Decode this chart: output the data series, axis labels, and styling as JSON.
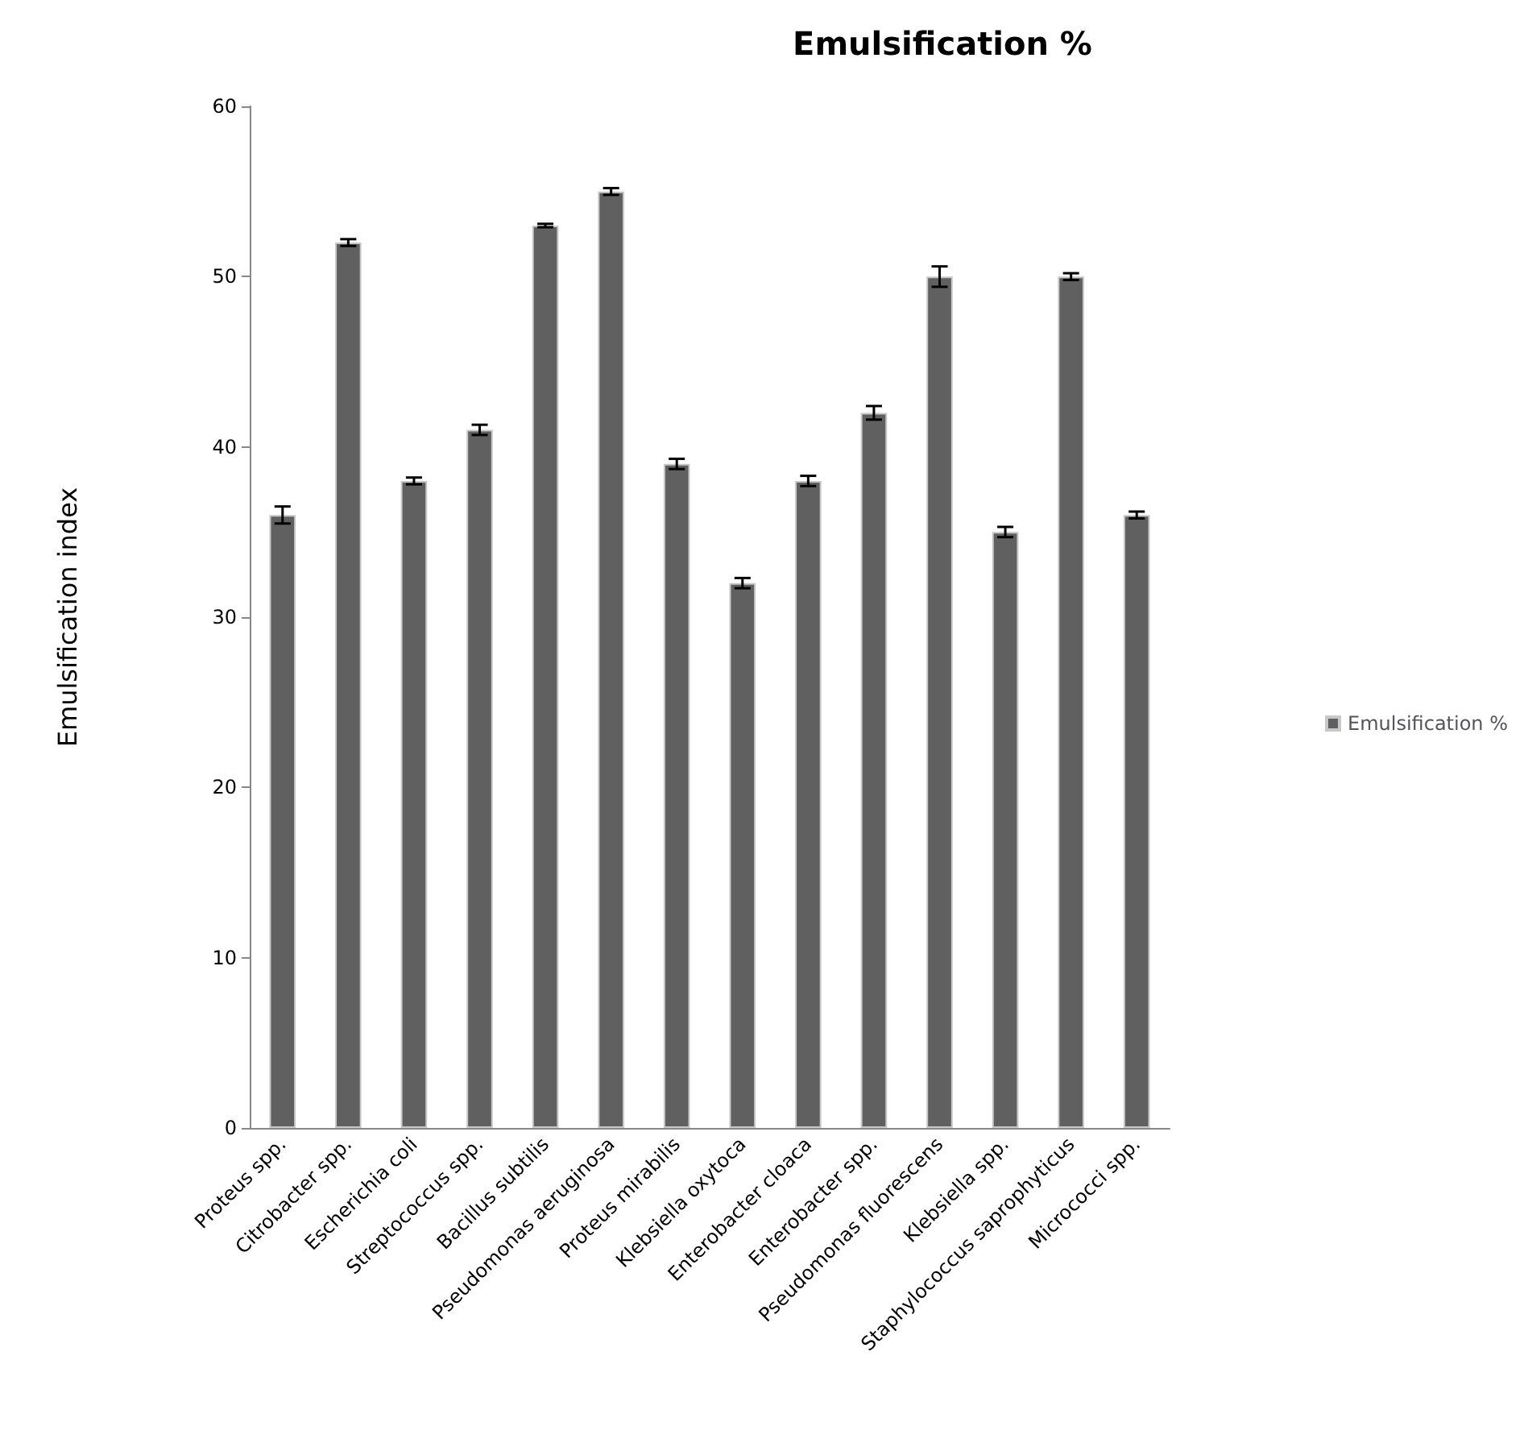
{
  "chart_data": {
    "type": "bar",
    "title": "Emulsification %",
    "ylabel": "Emulsification index",
    "categories": [
      "Proteus spp.",
      "Citrobacter spp.",
      "Escherichia coli",
      "Streptococcus spp.",
      "Bacillus subtilis",
      "Pseudomonas aeruginosa",
      "Proteus mirabilis",
      "Klebsiella oxytoca",
      "Enterobacter cloaca",
      "Enterobacter spp.",
      "Pseudomonas fluorescens",
      "Klebsiella spp.",
      "Staphylococcus saprophyticus",
      "Micrococci spp."
    ],
    "series": [
      {
        "name": "Emulsification %",
        "color": "#606060",
        "values": [
          36,
          52,
          38,
          41,
          53,
          55,
          39,
          32,
          38,
          42,
          50,
          35,
          50,
          36
        ],
        "errors": [
          0.5,
          0.2,
          0.2,
          0.3,
          0.1,
          0.2,
          0.3,
          0.3,
          0.3,
          0.4,
          0.6,
          0.3,
          0.2,
          0.2
        ]
      }
    ],
    "ylim": [
      0,
      60
    ],
    "yticks": [
      0,
      10,
      20,
      30,
      40,
      50,
      60
    ],
    "grid": false,
    "legend": "right"
  }
}
